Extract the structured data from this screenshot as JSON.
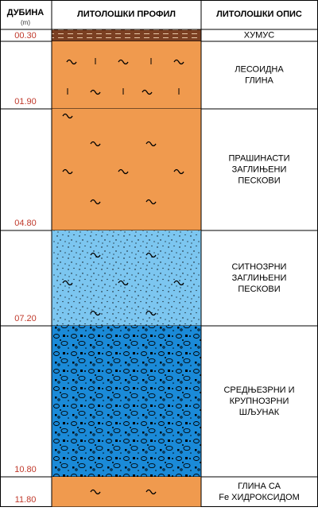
{
  "header": {
    "depth": "ДУБИНА",
    "unit": "(m)",
    "profile": "ЛИТОЛОШКИ ПРОФИЛ",
    "description": "ЛИТОЛОШКИ ОПИС"
  },
  "layers": [
    {
      "depth": "00.30",
      "description": [
        "ХУМУС"
      ]
    },
    {
      "depth": "01.90",
      "description": [
        "ЛЕСОИДНА",
        "ГЛИНА"
      ]
    },
    {
      "depth": "04.80",
      "description": [
        "ПРАШИНАСТИ",
        "ЗАГЛИЊЕНИ",
        "ПЕСКОВИ"
      ]
    },
    {
      "depth": "07.20",
      "description": [
        "СИТНОЗРНИ",
        "ЗАГЛИЊЕНИ",
        "ПЕСКОВИ"
      ]
    },
    {
      "depth": "10.80",
      "description": [
        "СРЕДЊЕЗРНИ И",
        "КРУПНОЗРНИ",
        "ШЉУНАК"
      ]
    },
    {
      "depth": "11.80",
      "description": [
        "ГЛИНА СА",
        "Fe ХИДРОКСИДОМ"
      ]
    }
  ]
}
